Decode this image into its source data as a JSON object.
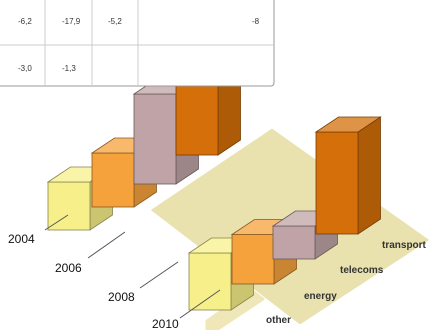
{
  "chart_data": {
    "type": "bar",
    "subtype": "3d-grouped",
    "years": [
      "2004",
      "2006",
      "2008",
      "2010"
    ],
    "categories": [
      "other",
      "energy",
      "telecoms",
      "transport"
    ],
    "series": [
      {
        "year": "2004",
        "values": {
          "other": 32,
          "energy": 36,
          "telecoms": 60,
          "transport": 100
        }
      },
      {
        "year": "2010",
        "values": {
          "other": 38,
          "energy": 33,
          "telecoms": 22,
          "transport": 68
        }
      }
    ],
    "colors": {
      "other": "#f7f08a",
      "energy": "#f5a23c",
      "telecoms": "#bfa3a6",
      "transport": "#d46f0a"
    },
    "table_rows": [
      [
        "-6,2",
        "-17,9",
        "-5,2",
        "-8"
      ],
      [
        "-3,0",
        "-1,3",
        "",
        ""
      ]
    ]
  }
}
